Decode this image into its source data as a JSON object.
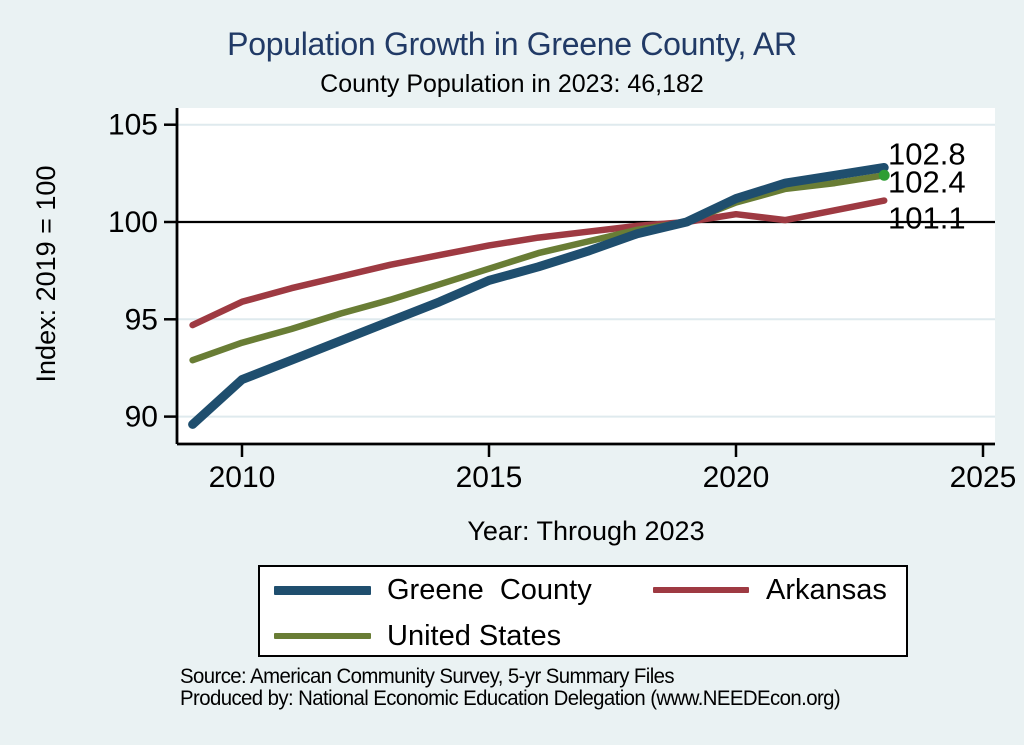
{
  "header": {
    "title": "Population Growth in Greene County, AR",
    "subtitle": "County Population in 2023: 46,182"
  },
  "colors": {
    "background": "#eaf2f3",
    "plot_background": "#ffffff",
    "gridline": "#dfeaee",
    "axis": "#000000",
    "reference_line": "#000000",
    "title_text": "#213a66",
    "greene_county": "#1f4e6e",
    "arkansas": "#9e3a42",
    "united_states": "#697d35",
    "us_marker_dot": "#2e9e33"
  },
  "chart_data": {
    "type": "line",
    "title": "Population Growth in Greene County, AR",
    "subtitle": "County Population in 2023: 46,182",
    "xlabel": "Year: Through 2023",
    "ylabel": "Index: 2019 = 100",
    "x": [
      2009,
      2010,
      2011,
      2012,
      2013,
      2014,
      2015,
      2016,
      2017,
      2018,
      2019,
      2020,
      2021,
      2022,
      2023
    ],
    "series": [
      {
        "name": "Greene  County",
        "color_key": "greene_county",
        "line_width": 9,
        "end_label": "102.8",
        "values": [
          89.6,
          91.9,
          92.9,
          93.9,
          94.9,
          95.9,
          97.0,
          97.7,
          98.5,
          99.4,
          100.0,
          101.2,
          102.0,
          102.4,
          102.8
        ]
      },
      {
        "name": "Arkansas",
        "color_key": "arkansas",
        "line_width": 6.5,
        "end_label": "101.1",
        "values": [
          94.7,
          95.9,
          96.6,
          97.2,
          97.8,
          98.3,
          98.8,
          99.2,
          99.5,
          99.8,
          100.0,
          100.4,
          100.1,
          100.6,
          101.1
        ]
      },
      {
        "name": "United States",
        "color_key": "united_states",
        "line_width": 6.5,
        "end_label": "102.4",
        "marker_end": true,
        "values": [
          92.9,
          93.8,
          94.5,
          95.3,
          96.0,
          96.8,
          97.6,
          98.4,
          99.0,
          99.6,
          100.0,
          101.0,
          101.7,
          102.0,
          102.4
        ]
      }
    ],
    "xticks": [
      2010,
      2015,
      2020,
      2025
    ],
    "yticks": [
      90,
      95,
      100,
      105
    ],
    "reference_line_y": 100,
    "xlim": [
      2008.7,
      2025.25
    ],
    "ylim": [
      88.7,
      105.9
    ],
    "grid": true,
    "legend_position": "bottom"
  },
  "legend": {
    "items": [
      {
        "label": "Greene  County",
        "color_key": "greene_county"
      },
      {
        "label": "Arkansas",
        "color_key": "arkansas"
      },
      {
        "label": "United States",
        "color_key": "united_states"
      }
    ]
  },
  "footer": {
    "source_line1": "Source: American Community Survey, 5-yr Summary Files",
    "source_line2": "Produced by: National Economic Education Delegation (www.NEEDEcon.org)"
  }
}
